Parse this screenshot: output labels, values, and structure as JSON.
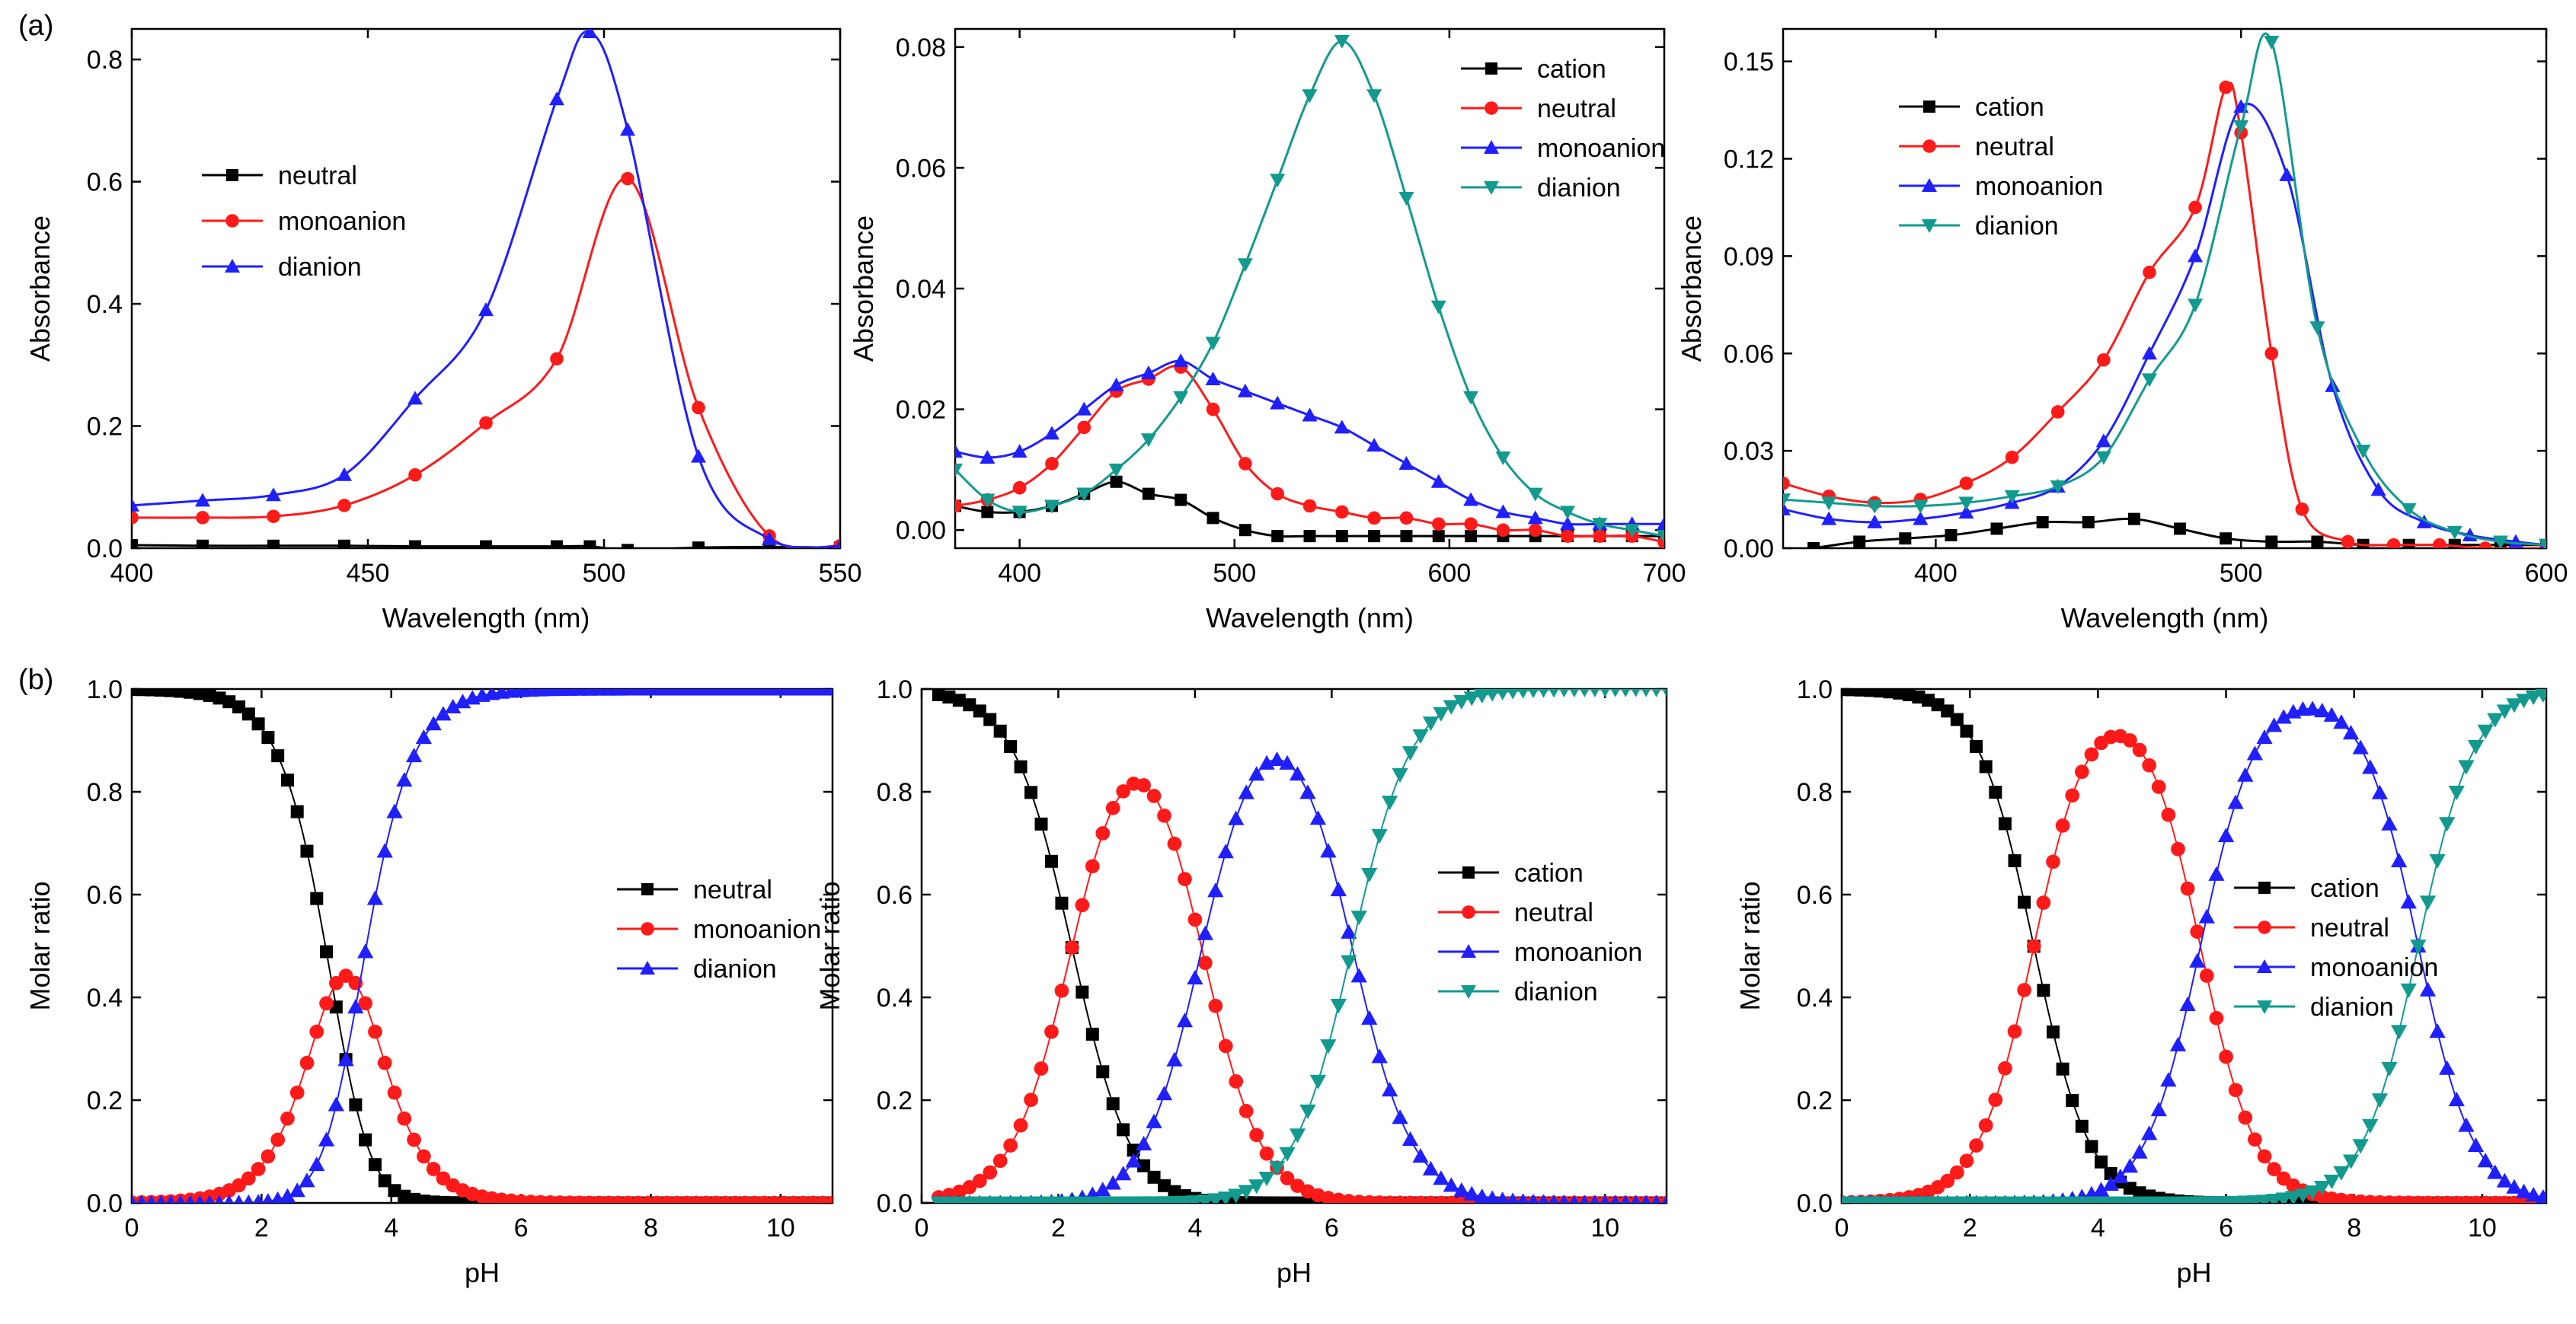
{
  "panel_labels": {
    "a": "(a)",
    "b": "(b)"
  },
  "colors": {
    "black": "#000000",
    "red": "#ff1a1a",
    "blue": "#1f1fff",
    "teal": "#129a8f"
  },
  "chart_data": [
    {
      "id": "a1",
      "type": "line",
      "xlabel": "Wavelength (nm)",
      "ylabel": "Absorbance",
      "xlim": [
        400,
        550
      ],
      "ylim": [
        0,
        0.85
      ],
      "xticks": [
        "400",
        "450",
        "500",
        "550"
      ],
      "xtickvals": [
        400,
        450,
        500,
        550
      ],
      "yticks": [
        "0.0",
        "0.2",
        "0.4",
        "0.6",
        "0.8"
      ],
      "ytickvals": [
        0,
        0.2,
        0.4,
        0.6,
        0.8
      ],
      "legend": "upper-left",
      "series": [
        {
          "name": "neutral",
          "color": "#000000",
          "marker": "square",
          "x": [
            400,
            415,
            430,
            445,
            460,
            475,
            490,
            497,
            505,
            520,
            535,
            550
          ],
          "y": [
            0.005,
            0.004,
            0.004,
            0.004,
            0.003,
            0.003,
            0.003,
            0.003,
            -0.003,
            0.001,
            0.002,
            0.001
          ]
        },
        {
          "name": "monoanion",
          "color": "#ff1a1a",
          "marker": "circle",
          "x": [
            400,
            415,
            430,
            445,
            460,
            475,
            490,
            505,
            520,
            535,
            550
          ],
          "y": [
            0.05,
            0.05,
            0.052,
            0.07,
            0.12,
            0.205,
            0.31,
            0.605,
            0.23,
            0.02,
            0.004
          ]
        },
        {
          "name": "dianion",
          "color": "#1f1fff",
          "marker": "triangle-up",
          "x": [
            400,
            415,
            430,
            445,
            460,
            475,
            490,
            497,
            505,
            520,
            535,
            550
          ],
          "y": [
            0.07,
            0.078,
            0.087,
            0.12,
            0.245,
            0.39,
            0.735,
            0.845,
            0.685,
            0.15,
            0.015,
            0.003
          ]
        }
      ]
    },
    {
      "id": "a2",
      "type": "line",
      "xlabel": "Wavelength (nm)",
      "ylabel": "Absorbance",
      "xlim": [
        370,
        700
      ],
      "ylim": [
        -0.003,
        0.083
      ],
      "xticks": [
        "400",
        "500",
        "600",
        "700"
      ],
      "xtickvals": [
        400,
        500,
        600,
        700
      ],
      "yticks": [
        "0.00",
        "0.02",
        "0.04",
        "0.06",
        "0.08"
      ],
      "ytickvals": [
        0,
        0.02,
        0.04,
        0.06,
        0.08
      ],
      "legend": "top-right",
      "series": [
        {
          "name": "cation",
          "color": "#000000",
          "marker": "square",
          "x": [
            370,
            385,
            400,
            415,
            430,
            445,
            460,
            475,
            490,
            505,
            520,
            535,
            550,
            565,
            580,
            595,
            610,
            625,
            640,
            655,
            670,
            685,
            700
          ],
          "y": [
            0.004,
            0.003,
            0.003,
            0.004,
            0.006,
            0.008,
            0.006,
            0.005,
            0.002,
            0.0,
            -0.001,
            -0.001,
            -0.001,
            -0.001,
            -0.001,
            -0.001,
            -0.001,
            -0.001,
            -0.001,
            -0.001,
            -0.001,
            -0.001,
            -0.001
          ]
        },
        {
          "name": "neutral",
          "color": "#ff1a1a",
          "marker": "circle",
          "x": [
            370,
            385,
            400,
            415,
            430,
            445,
            460,
            475,
            490,
            505,
            520,
            535,
            550,
            565,
            580,
            595,
            610,
            625,
            640,
            655,
            670,
            685,
            700
          ],
          "y": [
            0.004,
            0.005,
            0.007,
            0.011,
            0.017,
            0.023,
            0.025,
            0.027,
            0.02,
            0.011,
            0.006,
            0.004,
            0.003,
            0.002,
            0.002,
            0.001,
            0.001,
            0.0,
            0.0,
            -0.001,
            -0.001,
            -0.001,
            -0.002
          ]
        },
        {
          "name": "monoanion",
          "color": "#1f1fff",
          "marker": "triangle-up",
          "x": [
            370,
            385,
            400,
            415,
            430,
            445,
            460,
            475,
            490,
            505,
            520,
            535,
            550,
            565,
            580,
            595,
            610,
            625,
            640,
            655,
            670,
            685,
            700
          ],
          "y": [
            0.013,
            0.012,
            0.013,
            0.016,
            0.02,
            0.024,
            0.026,
            0.028,
            0.025,
            0.023,
            0.021,
            0.019,
            0.017,
            0.014,
            0.011,
            0.008,
            0.005,
            0.003,
            0.002,
            0.001,
            0.001,
            0.001,
            0.001
          ]
        },
        {
          "name": "dianion",
          "color": "#129a8f",
          "marker": "triangle-down",
          "x": [
            370,
            385,
            400,
            415,
            430,
            445,
            460,
            475,
            490,
            505,
            520,
            535,
            550,
            565,
            580,
            595,
            610,
            625,
            640,
            655,
            670,
            685,
            700
          ],
          "y": [
            0.01,
            0.005,
            0.003,
            0.004,
            0.006,
            0.01,
            0.015,
            0.022,
            0.031,
            0.044,
            0.058,
            0.072,
            0.081,
            0.072,
            0.055,
            0.037,
            0.022,
            0.012,
            0.006,
            0.003,
            0.001,
            0.0,
            -0.001
          ]
        }
      ]
    },
    {
      "id": "a3",
      "type": "line",
      "xlabel": "Wavelength (nm)",
      "ylabel": "Absorbance",
      "xlim": [
        350,
        600
      ],
      "ylim": [
        0,
        0.16
      ],
      "xticks": [
        "400",
        "500",
        "600"
      ],
      "xtickvals": [
        400,
        500,
        600
      ],
      "yticks": [
        "0.00",
        "0.03",
        "0.06",
        "0.09",
        "0.12",
        "0.15"
      ],
      "ytickvals": [
        0,
        0.03,
        0.06,
        0.09,
        0.12,
        0.15
      ],
      "legend": "top-left",
      "series": [
        {
          "name": "cation",
          "color": "#000000",
          "marker": "square",
          "x": [
            360,
            375,
            390,
            405,
            420,
            435,
            450,
            465,
            480,
            495,
            510,
            525,
            540,
            555,
            570,
            585,
            600
          ],
          "y": [
            0.0,
            0.002,
            0.003,
            0.004,
            0.006,
            0.008,
            0.008,
            0.009,
            0.006,
            0.003,
            0.002,
            0.002,
            0.001,
            0.001,
            0.001,
            0.001,
            0.001
          ]
        },
        {
          "name": "neutral",
          "color": "#ff1a1a",
          "marker": "circle",
          "x": [
            350,
            365,
            380,
            395,
            410,
            425,
            440,
            455,
            470,
            485,
            495,
            500,
            510,
            520,
            535,
            550,
            565,
            580,
            600
          ],
          "y": [
            0.02,
            0.016,
            0.014,
            0.015,
            0.02,
            0.028,
            0.042,
            0.058,
            0.085,
            0.105,
            0.142,
            0.128,
            0.06,
            0.012,
            0.002,
            0.001,
            0.001,
            0.0,
            0.0
          ]
        },
        {
          "name": "monoanion",
          "color": "#1f1fff",
          "marker": "triangle-up",
          "x": [
            350,
            365,
            380,
            395,
            410,
            425,
            440,
            455,
            470,
            485,
            500,
            515,
            530,
            545,
            560,
            575,
            590,
            600
          ],
          "y": [
            0.012,
            0.009,
            0.008,
            0.009,
            0.011,
            0.014,
            0.019,
            0.033,
            0.06,
            0.09,
            0.136,
            0.115,
            0.05,
            0.018,
            0.008,
            0.004,
            0.002,
            0.001
          ]
        },
        {
          "name": "dianion",
          "color": "#129a8f",
          "marker": "triangle-down",
          "x": [
            350,
            365,
            380,
            395,
            410,
            425,
            440,
            455,
            470,
            485,
            500,
            510,
            525,
            540,
            555,
            570,
            585,
            600
          ],
          "y": [
            0.015,
            0.014,
            0.013,
            0.013,
            0.014,
            0.016,
            0.019,
            0.028,
            0.052,
            0.075,
            0.13,
            0.156,
            0.068,
            0.03,
            0.012,
            0.005,
            0.002,
            0.001
          ]
        }
      ]
    },
    {
      "id": "b1",
      "type": "scatter",
      "xlabel": "pH",
      "ylabel": "Molar ratio",
      "xlim": [
        0,
        10.8
      ],
      "ylim": [
        0,
        1.0
      ],
      "xticks": [
        "0",
        "2",
        "4",
        "6",
        "8",
        "10"
      ],
      "xtickvals": [
        0,
        2,
        4,
        6,
        8,
        10
      ],
      "yticks": [
        "0.0",
        "0.2",
        "0.4",
        "0.6",
        "0.8",
        "1.0"
      ],
      "ytickvals": [
        0,
        0.2,
        0.4,
        0.6,
        0.8,
        1.0
      ],
      "legend": "center-right",
      "pka": [
        3.1,
        3.5
      ],
      "ph_range": [
        0,
        10.8
      ],
      "ph_step": 0.15,
      "series": [
        {
          "name": "neutral",
          "color": "#000000",
          "marker": "square"
        },
        {
          "name": "monoanion",
          "color": "#ff1a1a",
          "marker": "circle"
        },
        {
          "name": "dianion",
          "color": "#1f1fff",
          "marker": "triangle-up"
        }
      ]
    },
    {
      "id": "b2",
      "type": "scatter",
      "xlabel": "pH",
      "ylabel": "Molar ratio",
      "xlim": [
        0,
        10.9
      ],
      "ylim": [
        0,
        1.0
      ],
      "xticks": [
        "0",
        "2",
        "4",
        "6",
        "8",
        "10"
      ],
      "xtickvals": [
        0,
        2,
        4,
        6,
        8,
        10
      ],
      "yticks": [
        "0.0",
        "0.2",
        "0.4",
        "0.6",
        "0.8",
        "1.0"
      ],
      "ytickvals": [
        0,
        0.2,
        0.4,
        0.6,
        0.8,
        1.0
      ],
      "legend": "center-right",
      "pka": [
        2.2,
        4.1,
        6.3
      ],
      "ph_range": [
        0.25,
        10.9
      ],
      "ph_step": 0.15,
      "series": [
        {
          "name": "cation",
          "color": "#000000",
          "marker": "square"
        },
        {
          "name": "neutral",
          "color": "#ff1a1a",
          "marker": "circle"
        },
        {
          "name": "monoanion",
          "color": "#1f1fff",
          "marker": "triangle-up"
        },
        {
          "name": "dianion",
          "color": "#129a8f",
          "marker": "triangle-down"
        }
      ]
    },
    {
      "id": "b3",
      "type": "scatter",
      "xlabel": "pH",
      "ylabel": "Molar ratio",
      "xlim": [
        0,
        11.0
      ],
      "ylim": [
        0,
        1.0
      ],
      "xticks": [
        "0",
        "2",
        "4",
        "6",
        "8",
        "10"
      ],
      "xtickvals": [
        0,
        2,
        4,
        6,
        8,
        10
      ],
      "yticks": [
        "0.0",
        "0.2",
        "0.4",
        "0.6",
        "0.8",
        "1.0"
      ],
      "ytickvals": [
        0,
        0.2,
        0.4,
        0.6,
        0.8,
        1.0
      ],
      "legend": "center-right",
      "pka": [
        3.0,
        5.6,
        9.0
      ],
      "ph_range": [
        0,
        11.0
      ],
      "ph_step": 0.15,
      "series": [
        {
          "name": "cation",
          "color": "#000000",
          "marker": "square"
        },
        {
          "name": "neutral",
          "color": "#ff1a1a",
          "marker": "circle"
        },
        {
          "name": "monoanion",
          "color": "#1f1fff",
          "marker": "triangle-up"
        },
        {
          "name": "dianion",
          "color": "#129a8f",
          "marker": "triangle-down"
        }
      ]
    }
  ]
}
